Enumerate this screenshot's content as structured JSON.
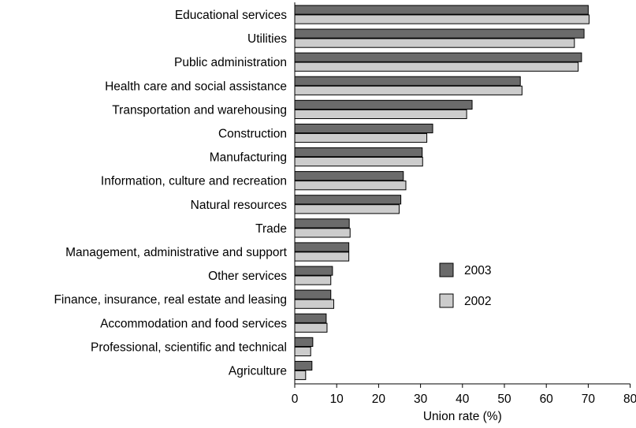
{
  "chart_data": {
    "type": "bar",
    "orientation": "horizontal",
    "title": "",
    "xlabel": "Union rate (%)",
    "ylabel": "",
    "xlim": [
      0,
      80
    ],
    "xticks": [
      "0",
      "10",
      "20",
      "30",
      "40",
      "50",
      "60",
      "70",
      "80"
    ],
    "grid": false,
    "legend_position": "center-right",
    "categories": [
      "Educational services",
      "Utilities",
      "Public administration",
      "Health care and social assistance",
      "Transportation and warehousing",
      "Construction",
      "Manufacturing",
      "Information, culture and recreation",
      "Natural resources",
      "Trade",
      "Management, administrative and support",
      "Other services",
      "Finance, insurance, real estate and leasing",
      "Accommodation and food services",
      "Professional, scientific and technical",
      "Agriculture"
    ],
    "series": [
      {
        "name": "2003",
        "color": "#6b6b6b",
        "values": [
          70.0,
          69.0,
          68.4,
          53.8,
          42.3,
          32.9,
          30.4,
          25.9,
          25.3,
          13.0,
          12.9,
          9.0,
          8.6,
          7.5,
          4.3,
          4.1
        ]
      },
      {
        "name": "2002",
        "color": "#cccccc",
        "values": [
          70.2,
          66.7,
          67.6,
          54.2,
          41.0,
          31.5,
          30.5,
          26.5,
          24.9,
          13.2,
          12.9,
          8.6,
          9.3,
          7.7,
          3.8,
          2.6
        ]
      }
    ]
  }
}
